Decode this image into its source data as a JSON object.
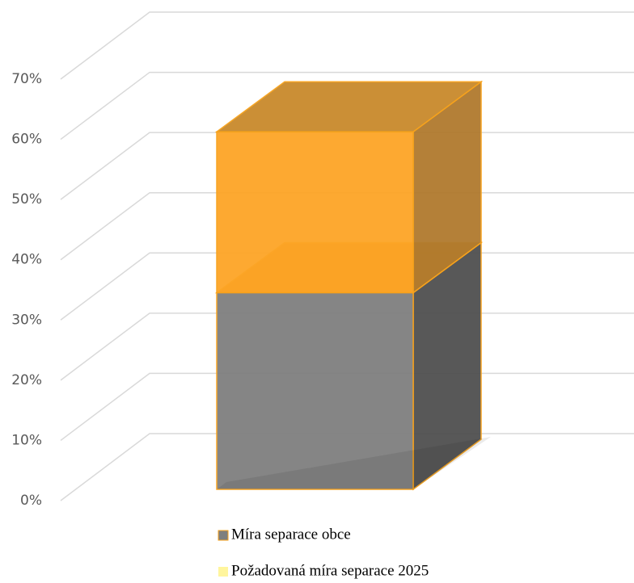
{
  "chart_data": {
    "type": "bar3d",
    "stacked": true,
    "categories": [
      null
    ],
    "series": [
      {
        "name": "Míra separace obce",
        "color": "#7f7f7f",
        "side_color": "#505050",
        "top_color": "#e08a10",
        "legend_color": "#7f7f7f",
        "values": [
          33
        ]
      },
      {
        "name": "Požadovaná míra separace 2025",
        "color": "#fda526",
        "side_color": "#b07a2e",
        "top_color": "#c98a2c",
        "legend_color": "#fff59d",
        "values": [
          27
        ]
      }
    ],
    "edge_color": "#f7a21b",
    "ylim": [
      0,
      70
    ],
    "yticks": [
      {
        "value": 0,
        "label": "0%"
      },
      {
        "value": 10,
        "label": "10%"
      },
      {
        "value": 20,
        "label": "20%"
      },
      {
        "value": 30,
        "label": "30%"
      },
      {
        "value": 40,
        "label": "40%"
      },
      {
        "value": 50,
        "label": "50%"
      },
      {
        "value": 60,
        "label": "60%"
      },
      {
        "value": 70,
        "label": "70%"
      }
    ],
    "grid": true
  }
}
